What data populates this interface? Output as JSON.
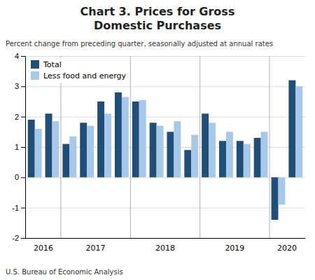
{
  "chart_data": {
    "type": "bar",
    "title": [
      "Chart 3. Prices for Gross",
      "Domestic Purchases"
    ],
    "subtitle": "Percent change from preceding quarter, seasonally adjusted at annual rates",
    "annotations": [
      "U.S. Bureau of Economic Analysis"
    ],
    "categories": [
      "2016",
      "2016",
      "2017",
      "2017",
      "2017",
      "2017",
      "2018",
      "2018",
      "2018",
      "2018",
      "2019",
      "2019",
      "2019",
      "2019",
      "2020",
      "2020"
    ],
    "series": [
      {
        "name": "Total",
        "color": "#1F4E79",
        "values": [
          1.9,
          2.1,
          1.1,
          1.8,
          2.5,
          2.8,
          2.5,
          1.8,
          1.5,
          0.9,
          2.1,
          1.2,
          1.2,
          1.3,
          -1.4,
          3.2
        ]
      },
      {
        "name": "Less food and energy",
        "color": "#A8C8E8",
        "values": [
          1.6,
          1.85,
          1.35,
          1.7,
          2.1,
          2.65,
          2.55,
          1.7,
          1.85,
          1.4,
          1.8,
          1.5,
          1.1,
          1.5,
          -0.9,
          3.0
        ]
      }
    ],
    "ylim": [
      -2,
      4
    ],
    "yticks": [
      -2,
      -1,
      0,
      1,
      2,
      3,
      4
    ],
    "grid": true,
    "legend": "upper left"
  }
}
